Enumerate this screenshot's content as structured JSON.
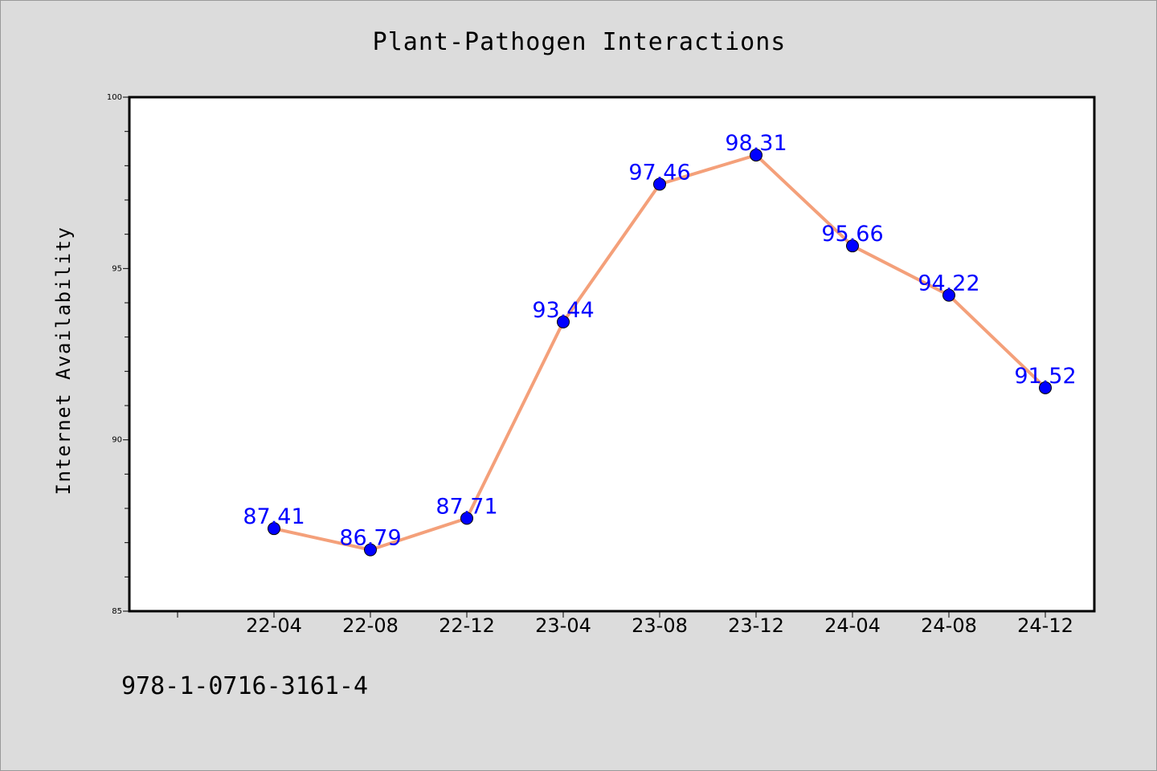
{
  "figure": {
    "background_color": "#dcdcdc",
    "footer_code": "978-1-0716-3161-4"
  },
  "chart_data": {
    "type": "line",
    "title": "Plant-Pathogen Interactions",
    "xlabel": "",
    "ylabel": "Internet Availability",
    "categories": [
      "22-04",
      "22-08",
      "22-12",
      "23-04",
      "23-08",
      "23-12",
      "24-04",
      "24-08",
      "24-12"
    ],
    "series": [
      {
        "values": [
          87.41,
          86.79,
          87.71,
          93.44,
          97.46,
          98.31,
          95.66,
          94.22,
          91.52
        ],
        "line_color": "#f4a07a",
        "marker_color": "#0000ff"
      }
    ],
    "data_labels": [
      "87.41",
      "86.79",
      "87.71",
      "93.44",
      "97.46",
      "98.31",
      "95.66",
      "94.22",
      "91.52"
    ],
    "ylim": [
      85,
      100
    ],
    "yticks": [
      85,
      90,
      95,
      100
    ],
    "y_minor_step": 1,
    "x_leading_empty_ticks": 1,
    "grid": false,
    "legend": "none",
    "label_color": "#0000ff"
  }
}
